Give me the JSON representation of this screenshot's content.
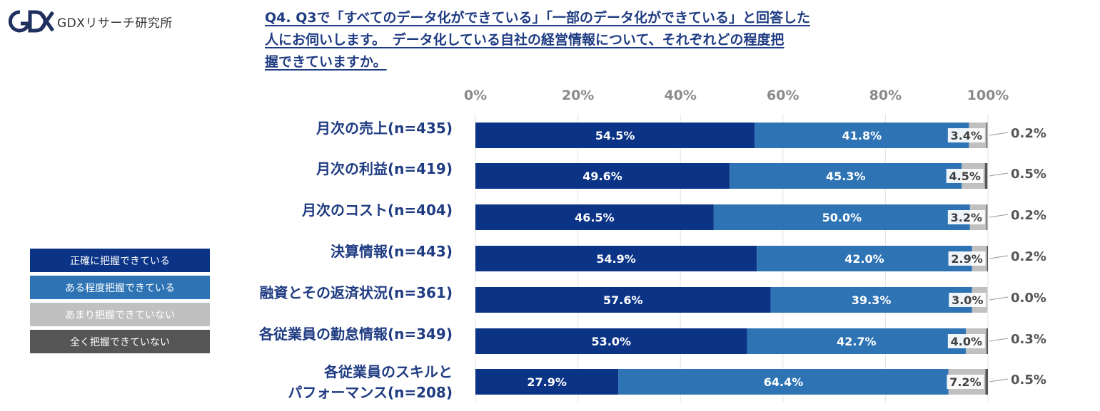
{
  "brand": {
    "logo_text": "GDXリサーチ研究所"
  },
  "title": {
    "line1": "Q4. Q3で「すべてのデータ化ができている」「一部のデータ化ができている」と回答した",
    "line2": "人にお伺いします。　データ化している自社の経営情報について、それぞれどの程度把",
    "line3": "握できていますか。"
  },
  "colors": {
    "series": [
      "#0b3386",
      "#2e74b5",
      "#c0c0c0",
      "#555555"
    ],
    "label_light": "#ffffff",
    "label_dark": "#404040"
  },
  "chart_data": {
    "type": "bar",
    "orientation": "horizontal",
    "stacked": true,
    "xlim": [
      0,
      100
    ],
    "x_ticks": [
      "0%",
      "20%",
      "40%",
      "60%",
      "80%",
      "100%"
    ],
    "grid": true,
    "legend_position": "left",
    "categories": [
      "月次の売上(n=435)",
      "月次の利益(n=419)",
      "月次のコスト(n=404)",
      "決算情報(n=443)",
      "融資とその返済状況(n=361)",
      "各従業員の勤怠情報(n=349)",
      "各従業員のスキルとパフォーマンス(n=208)"
    ],
    "category_lines": [
      [
        "月次の売上(n=435)"
      ],
      [
        "月次の利益(n=419)"
      ],
      [
        "月次のコスト(n=404)"
      ],
      [
        "決算情報(n=443)"
      ],
      [
        "融資とその返済状況(n=361)"
      ],
      [
        "各従業員の勤怠情報(n=349)"
      ],
      [
        "各従業員のスキルと",
        "パフォーマンス(n=208)"
      ]
    ],
    "series": [
      {
        "name": "正確に把握できている",
        "values": [
          54.5,
          49.6,
          46.5,
          54.9,
          57.6,
          53.0,
          27.9
        ],
        "labels": [
          "54.5%",
          "49.6%",
          "46.5%",
          "54.9%",
          "57.6%",
          "53.0%",
          "27.9%"
        ]
      },
      {
        "name": "ある程度把握できている",
        "values": [
          41.8,
          45.3,
          50.0,
          42.0,
          39.3,
          42.7,
          64.4
        ],
        "labels": [
          "41.8%",
          "45.3%",
          "50.0%",
          "42.0%",
          "39.3%",
          "42.7%",
          "64.4%"
        ]
      },
      {
        "name": "あまり把握できていない",
        "values": [
          3.4,
          4.5,
          3.2,
          2.9,
          3.0,
          4.0,
          7.2
        ],
        "labels": [
          "3.4%",
          "4.5%",
          "3.2%",
          "2.9%",
          "3.0%",
          "4.0%",
          "7.2%"
        ]
      },
      {
        "name": "全く把握できていない",
        "values": [
          0.2,
          0.5,
          0.2,
          0.2,
          0.0,
          0.3,
          0.5
        ],
        "labels": [
          "0.2%",
          "0.5%",
          "0.2%",
          "0.2%",
          "0.0%",
          "0.3%",
          "0.5%"
        ]
      }
    ]
  }
}
